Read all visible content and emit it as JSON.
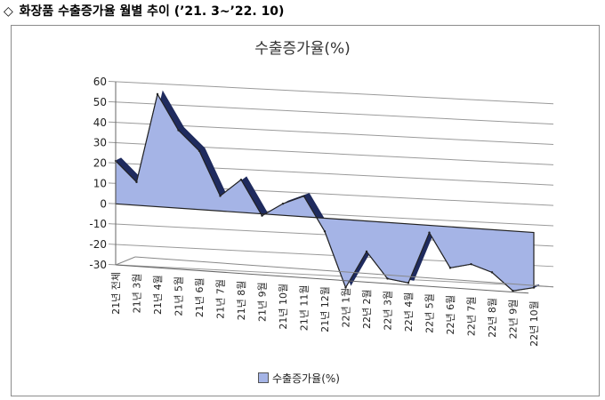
{
  "heading": {
    "icon": "diamond-outline-icon",
    "text": "화장품 수출증가율 월별 추이 (’21. 3~’22. 10)"
  },
  "chart_data": {
    "type": "area",
    "title": "수출증가율(%)",
    "categories": [
      "21년 전체",
      "21년 3월",
      "21년 4월",
      "21년 5월",
      "21년 6월",
      "21년 7월",
      "21년 8월",
      "21년 9월",
      "21년 10월",
      "21년 11월",
      "21년 12월",
      "22년 1월",
      "22년 2월",
      "22년 3월",
      "22년 4월",
      "22년 5월",
      "22년 6월",
      "22년 7월",
      "22년 8월",
      "22년 9월",
      "22년 10월"
    ],
    "series": [
      {
        "name": "수출증가율(%)",
        "values": [
          21.1,
          11.4,
          55.3,
          38.3,
          28.8,
          7.4,
          16.1,
          -0.9,
          5.7,
          10.1,
          -6.5,
          -33.4,
          -15.0,
          -27.6,
          -29.0,
          -3.6,
          -20.2,
          -17.7,
          -21.0,
          -29.4,
          -27.1
        ]
      }
    ],
    "ylim": [
      -30,
      60
    ],
    "yticks": [
      -30,
      -20,
      -10,
      0,
      10,
      20,
      30,
      40,
      50,
      60
    ],
    "grid": true,
    "legend": "bottom",
    "colors": {
      "fill": "#a5b4e6",
      "edge": "#222222",
      "depth": "#1f2b5e"
    }
  }
}
